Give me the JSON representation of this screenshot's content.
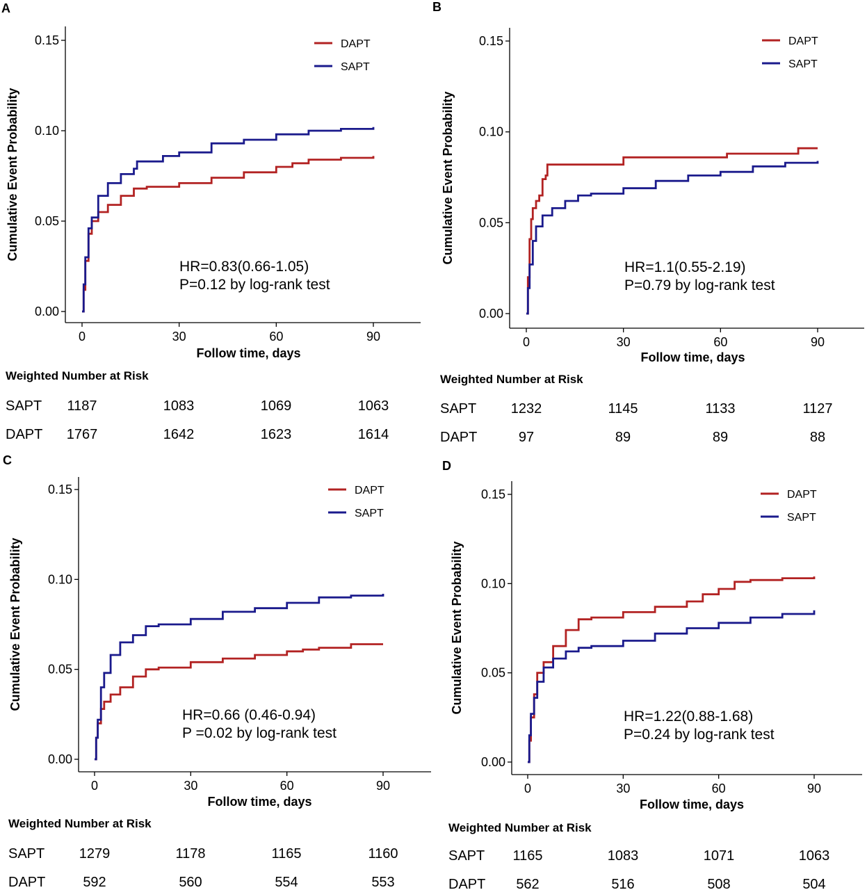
{
  "colors": {
    "DAPT": "#b22222",
    "SAPT": "#1a1a8c",
    "axis": "#000000"
  },
  "risk_table_title": "Weighted Number at Risk",
  "chart_data": [
    {
      "panel": "A",
      "type": "line",
      "xlabel": "Follow time, days",
      "ylabel": "Cumulative Event Probability",
      "xlim": [
        0,
        90
      ],
      "ylim": [
        0,
        0.15
      ],
      "xticks": [
        0,
        30,
        60,
        90
      ],
      "yticks": [
        "0.00",
        "0.05",
        "0.10",
        "0.15"
      ],
      "legend": {
        "placement": "top-right",
        "entries": [
          "DAPT",
          "SAPT"
        ]
      },
      "annotation": [
        "HR=0.83(0.66-1.05)",
        "P=0.12 by log-rank test"
      ],
      "series": [
        {
          "name": "DAPT",
          "x": [
            0,
            0.5,
            1,
            2,
            3,
            5,
            8,
            12,
            16,
            20,
            30,
            40,
            50,
            60,
            65,
            70,
            80,
            90
          ],
          "y": [
            0,
            0.012,
            0.028,
            0.043,
            0.05,
            0.055,
            0.059,
            0.064,
            0.068,
            0.069,
            0.071,
            0.074,
            0.077,
            0.08,
            0.082,
            0.084,
            0.085,
            0.086
          ]
        },
        {
          "name": "SAPT",
          "x": [
            0,
            0.5,
            1,
            2,
            3,
            5,
            8,
            12,
            16,
            17,
            25,
            30,
            40,
            50,
            60,
            70,
            80,
            90
          ],
          "y": [
            0,
            0.015,
            0.03,
            0.046,
            0.052,
            0.064,
            0.071,
            0.076,
            0.079,
            0.083,
            0.086,
            0.088,
            0.093,
            0.095,
            0.098,
            0.1,
            0.101,
            0.102
          ]
        }
      ],
      "risk_table": [
        {
          "group": "SAPT",
          "values": [
            "1187",
            "1083",
            "1069",
            "1063"
          ]
        },
        {
          "group": "DAPT",
          "values": [
            "1767",
            "1642",
            "1623",
            "1614"
          ]
        }
      ]
    },
    {
      "panel": "B",
      "type": "line",
      "xlabel": "Follow time, days",
      "ylabel": "Cumulative Event Probability",
      "xlim": [
        0,
        90
      ],
      "ylim": [
        0,
        0.15
      ],
      "xticks": [
        0,
        30,
        60,
        90
      ],
      "yticks": [
        "0.00",
        "0.05",
        "0.10",
        "0.15"
      ],
      "legend": {
        "placement": "top-right",
        "entries": [
          "DAPT",
          "SAPT"
        ]
      },
      "annotation": [
        "HR=1.1(0.55-2.19)",
        "P=0.79 by log-rank test"
      ],
      "series": [
        {
          "name": "DAPT",
          "x": [
            0,
            0.5,
            1,
            1.5,
            2,
            3,
            4,
            5,
            6,
            6.5,
            30,
            62,
            84,
            90
          ],
          "y": [
            0,
            0.02,
            0.041,
            0.052,
            0.058,
            0.062,
            0.065,
            0.074,
            0.076,
            0.082,
            0.086,
            0.088,
            0.091,
            0.091
          ]
        },
        {
          "name": "SAPT",
          "x": [
            0,
            0.5,
            1,
            2,
            3,
            5,
            8,
            12,
            16,
            20,
            30,
            40,
            50,
            60,
            70,
            80,
            90
          ],
          "y": [
            0,
            0.014,
            0.027,
            0.04,
            0.048,
            0.054,
            0.058,
            0.062,
            0.065,
            0.066,
            0.069,
            0.073,
            0.076,
            0.078,
            0.081,
            0.083,
            0.084
          ]
        }
      ],
      "risk_table": [
        {
          "group": "SAPT",
          "values": [
            "1232",
            "1145",
            "1133",
            "1127"
          ]
        },
        {
          "group": "DAPT",
          "values": [
            "97",
            "89",
            "89",
            "88"
          ]
        }
      ]
    },
    {
      "panel": "C",
      "type": "line",
      "xlabel": "Follow time, days",
      "ylabel": "Cumulative Event Probability",
      "xlim": [
        0,
        90
      ],
      "ylim": [
        0,
        0.15
      ],
      "xticks": [
        0,
        30,
        60,
        90
      ],
      "yticks": [
        "0.00",
        "0.05",
        "0.10",
        "0.15"
      ],
      "legend": {
        "placement": "top-right",
        "entries": [
          "DAPT",
          "SAPT"
        ]
      },
      "annotation": [
        "HR=0.66 (0.46-0.94)",
        "P =0.02 by log-rank test"
      ],
      "series": [
        {
          "name": "DAPT",
          "x": [
            0,
            0.5,
            1,
            2,
            3,
            5,
            8,
            12,
            16,
            20,
            30,
            40,
            50,
            60,
            65,
            70,
            80,
            90
          ],
          "y": [
            0,
            0.012,
            0.02,
            0.028,
            0.032,
            0.036,
            0.04,
            0.046,
            0.05,
            0.051,
            0.054,
            0.056,
            0.058,
            0.06,
            0.061,
            0.062,
            0.064,
            0.064
          ]
        },
        {
          "name": "SAPT",
          "x": [
            0,
            0.5,
            1,
            2,
            3,
            5,
            8,
            12,
            16,
            20,
            30,
            40,
            50,
            60,
            70,
            80,
            90
          ],
          "y": [
            0,
            0.012,
            0.022,
            0.04,
            0.048,
            0.058,
            0.065,
            0.069,
            0.074,
            0.075,
            0.078,
            0.082,
            0.084,
            0.087,
            0.09,
            0.091,
            0.092
          ]
        }
      ],
      "risk_table": [
        {
          "group": "SAPT",
          "values": [
            "1279",
            "1178",
            "1165",
            "1160"
          ]
        },
        {
          "group": "DAPT",
          "values": [
            "592",
            "560",
            "554",
            "553"
          ]
        }
      ]
    },
    {
      "panel": "D",
      "type": "line",
      "xlabel": "Follow time, days",
      "ylabel": "Cumulative Event Probability",
      "xlim": [
        0,
        90
      ],
      "ylim": [
        0,
        0.15
      ],
      "xticks": [
        0,
        30,
        60,
        90
      ],
      "yticks": [
        "0.00",
        "0.05",
        "0.10",
        "0.15"
      ],
      "legend": {
        "placement": "top-right",
        "entries": [
          "DAPT",
          "SAPT"
        ]
      },
      "annotation": [
        "HR=1.22(0.88-1.68)",
        "P=0.24 by log-rank test"
      ],
      "series": [
        {
          "name": "DAPT",
          "x": [
            0,
            0.5,
            1,
            2,
            3,
            5,
            8,
            12,
            16,
            20,
            30,
            40,
            50,
            55,
            60,
            65,
            70,
            80,
            90
          ],
          "y": [
            0,
            0.012,
            0.025,
            0.038,
            0.05,
            0.056,
            0.065,
            0.074,
            0.08,
            0.081,
            0.084,
            0.087,
            0.09,
            0.094,
            0.097,
            0.101,
            0.102,
            0.103,
            0.104
          ]
        },
        {
          "name": "SAPT",
          "x": [
            0,
            0.5,
            1,
            2,
            3,
            5,
            8,
            12,
            16,
            20,
            30,
            40,
            50,
            60,
            70,
            80,
            90
          ],
          "y": [
            0,
            0.015,
            0.027,
            0.036,
            0.045,
            0.053,
            0.058,
            0.062,
            0.064,
            0.065,
            0.068,
            0.072,
            0.075,
            0.078,
            0.081,
            0.083,
            0.085
          ]
        }
      ],
      "risk_table": [
        {
          "group": "SAPT",
          "values": [
            "1165",
            "1083",
            "1071",
            "1063"
          ]
        },
        {
          "group": "DAPT",
          "values": [
            "562",
            "516",
            "508",
            "504"
          ]
        }
      ]
    }
  ]
}
